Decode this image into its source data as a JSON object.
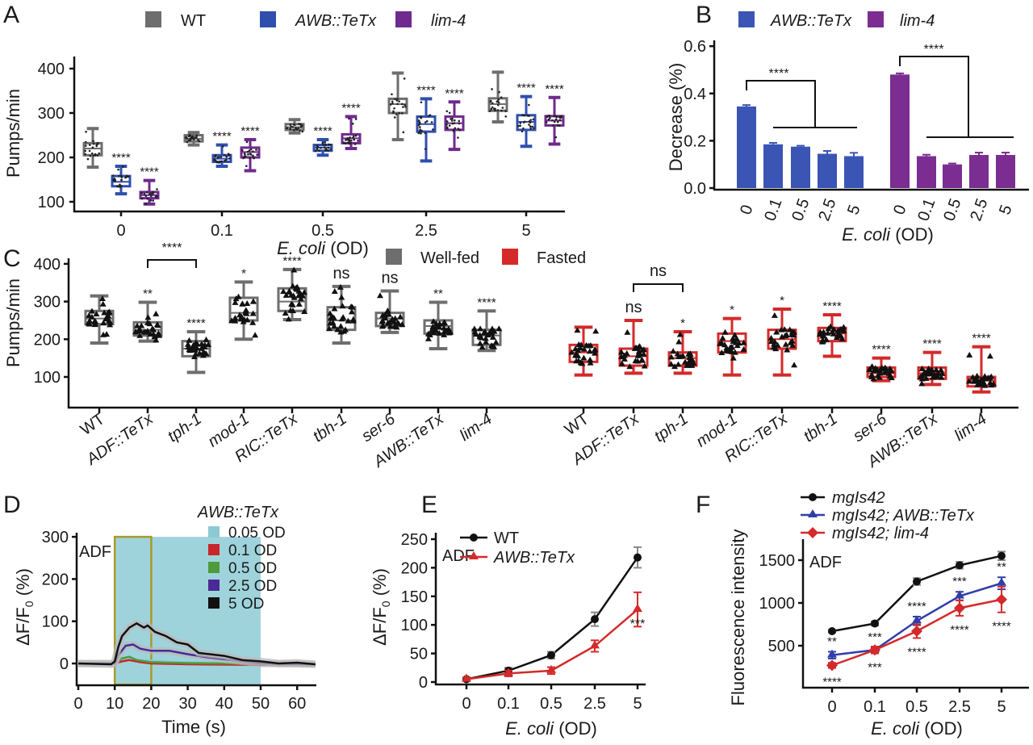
{
  "chart_data": [
    {
      "panel_label": "A",
      "type": "box",
      "categories": [
        "0",
        "0.1",
        "0.5",
        "2.5",
        "5"
      ],
      "xlabel_italic": "E. coli",
      "xlabel_rest": " (OD)",
      "ylabel": "Pumps/min",
      "ylim": [
        80,
        410
      ],
      "yticks": [
        100,
        200,
        300,
        400
      ],
      "series": [
        {
          "name": "WT",
          "color": "#6e6e6e",
          "significance": [
            "",
            "",
            "",
            "",
            ""
          ],
          "boxes": [
            [
              178,
              205,
              220,
              232,
              265
            ],
            [
              228,
              236,
              242,
              250,
              256
            ],
            [
              255,
              262,
              268,
              275,
              285
            ],
            [
              240,
              300,
              320,
              332,
              390
            ],
            [
              280,
              305,
              320,
              333,
              392
            ]
          ]
        },
        {
          "name": "AWB::TeTx",
          "color": "#2f4fae",
          "significance": [
            "****",
            "****",
            "****",
            "****",
            "****"
          ],
          "boxes": [
            [
              118,
              135,
              145,
              158,
              180
            ],
            [
              180,
              190,
              197,
              205,
              228
            ],
            [
              205,
              215,
              222,
              228,
              240
            ],
            [
              192,
              258,
              275,
              292,
              332
            ],
            [
              225,
              262,
              280,
              295,
              337
            ]
          ]
        },
        {
          "name": "lim-4",
          "color": "#6f2a8e",
          "significance": [
            "****",
            "****",
            "****",
            "****",
            "****"
          ],
          "boxes": [
            [
              95,
              108,
              115,
              122,
              148
            ],
            [
              170,
              200,
              212,
              222,
              240
            ],
            [
              220,
              232,
              243,
              252,
              292
            ],
            [
              218,
              262,
              277,
              292,
              325
            ],
            [
              230,
              272,
              283,
              293,
              335
            ]
          ]
        }
      ]
    },
    {
      "panel_label": "B",
      "type": "bar",
      "categories": [
        "0",
        "0.1",
        "0.5",
        "2.5",
        "5"
      ],
      "xlabel_italic": "E. coli",
      "xlabel_rest": " (OD)",
      "ylabel": "Decrease (%)",
      "ylim": [
        0,
        0.6
      ],
      "yticks": [
        "0.0",
        "0.2",
        "0.4",
        "0.6"
      ],
      "series": [
        {
          "name": "AWB::TeTx",
          "color": "#3a55b4",
          "values": [
            0.345,
            0.185,
            0.175,
            0.145,
            0.135
          ],
          "errors": [
            0.006,
            0.006,
            0.004,
            0.012,
            0.014
          ]
        },
        {
          "name": "lim-4",
          "color": "#7b2d91",
          "values": [
            0.48,
            0.135,
            0.1,
            0.14,
            0.14
          ],
          "errors": [
            0.005,
            0.006,
            0.004,
            0.01,
            0.01
          ]
        }
      ],
      "significance": [
        "****",
        "****"
      ]
    },
    {
      "panel_label": "C",
      "type": "box",
      "ylabel": "Pumps/min",
      "ylim": [
        20,
        410
      ],
      "yticks": [
        100,
        200,
        300,
        400
      ],
      "categories": [
        "WT",
        "ADF::TeTx",
        "tph-1",
        "mod-1",
        "RIC::TeTx",
        "tbh-1",
        "ser-6",
        "AWB::TeTx",
        "lim-4"
      ],
      "series": [
        {
          "name": "Well-fed",
          "color": "#6e6e6e",
          "sig_color": "#1a1a1a",
          "significance": [
            "",
            "**",
            "****",
            "*",
            "****",
            "ns",
            "ns",
            "**",
            "****"
          ],
          "bracket": {
            "label": "****"
          },
          "boxes": [
            [
              190,
              240,
              255,
              275,
              315
            ],
            [
              195,
              210,
              225,
              245,
              298
            ],
            [
              112,
              155,
              175,
              195,
              220
            ],
            [
              200,
              250,
              270,
              310,
              352
            ],
            [
              252,
              275,
              300,
              335,
              385
            ],
            [
              190,
              225,
              250,
              285,
              340
            ],
            [
              218,
              235,
              255,
              270,
              328
            ],
            [
              175,
              215,
              235,
              250,
              298
            ],
            [
              170,
              185,
              210,
              225,
              275
            ]
          ]
        },
        {
          "name": "Fasted",
          "color": "#d42a2a",
          "sig_color": "#b2242a",
          "significance": [
            "",
            "ns",
            "*",
            "*",
            "*",
            "****",
            "****",
            "****",
            "****"
          ],
          "bracket": {
            "label": "ns"
          },
          "boxes": [
            [
              105,
              140,
              165,
              185,
              232
            ],
            [
              110,
              130,
              155,
              175,
              250
            ],
            [
              110,
              130,
              150,
              165,
              220
            ],
            [
              105,
              165,
              195,
              215,
              255
            ],
            [
              105,
              175,
              200,
              225,
              280
            ],
            [
              155,
              195,
              215,
              230,
              265
            ],
            [
              90,
              100,
              110,
              125,
              150
            ],
            [
              80,
              95,
              110,
              125,
              165
            ],
            [
              60,
              75,
              90,
              100,
              180
            ]
          ]
        }
      ]
    },
    {
      "panel_label": "D",
      "type": "line",
      "annotation": "ADF",
      "legend_title": "AWB::TeTx",
      "xlabel": "Time (s)",
      "ylabel_main": "ΔF/F",
      "ylabel_sub": "0",
      "ylabel_unit": " (%)",
      "xlim": [
        0,
        65
      ],
      "ylim": [
        -50,
        300
      ],
      "xticks": [
        0,
        10,
        20,
        30,
        40,
        50,
        60
      ],
      "yticks": [
        0,
        100,
        200,
        300
      ],
      "stimulus_window_s": [
        10,
        50
      ],
      "highlight_window_s": [
        10,
        20
      ],
      "stimulus_color": "#9fd3dc",
      "highlight_color": "#a89a2a",
      "series": [
        {
          "name": "0.05 OD",
          "color": "#8ccad3",
          "points": [
            [
              0,
              0
            ],
            [
              10,
              0
            ],
            [
              12,
              8
            ],
            [
              14,
              12
            ],
            [
              18,
              8
            ],
            [
              25,
              4
            ],
            [
              35,
              2
            ],
            [
              50,
              0
            ],
            [
              65,
              -3
            ]
          ]
        },
        {
          "name": "0.1 OD",
          "color": "#c8262b",
          "points": [
            [
              0,
              0
            ],
            [
              10,
              0
            ],
            [
              12,
              5
            ],
            [
              14,
              8
            ],
            [
              17,
              3
            ],
            [
              20,
              0
            ],
            [
              30,
              -2
            ],
            [
              45,
              -3
            ],
            [
              55,
              -4
            ],
            [
              65,
              -5
            ]
          ]
        },
        {
          "name": "0.5 OD",
          "color": "#4f9a3a",
          "points": [
            [
              0,
              0
            ],
            [
              10,
              0
            ],
            [
              12,
              12
            ],
            [
              14,
              16
            ],
            [
              16,
              8
            ],
            [
              20,
              3
            ],
            [
              30,
              1
            ],
            [
              50,
              -1
            ],
            [
              65,
              -3
            ]
          ]
        },
        {
          "name": "2.5 OD",
          "color": "#4a2a95",
          "points": [
            [
              0,
              0
            ],
            [
              10,
              0
            ],
            [
              11,
              20
            ],
            [
              13,
              42
            ],
            [
              15,
              45
            ],
            [
              17,
              35
            ],
            [
              20,
              30
            ],
            [
              25,
              30
            ],
            [
              30,
              22
            ],
            [
              35,
              15
            ],
            [
              40,
              10
            ],
            [
              45,
              5
            ],
            [
              50,
              0
            ],
            [
              65,
              -2
            ]
          ]
        },
        {
          "name": "5 OD",
          "color": "#111111",
          "points": [
            [
              0,
              0
            ],
            [
              9,
              -2
            ],
            [
              10,
              5
            ],
            [
              11,
              40
            ],
            [
              12,
              65
            ],
            [
              14,
              85
            ],
            [
              16,
              95
            ],
            [
              18,
              85
            ],
            [
              19,
              90
            ],
            [
              21,
              75
            ],
            [
              24,
              65
            ],
            [
              27,
              50
            ],
            [
              30,
              45
            ],
            [
              33,
              25
            ],
            [
              36,
              22
            ],
            [
              40,
              18
            ],
            [
              45,
              8
            ],
            [
              50,
              5
            ],
            [
              55,
              0
            ],
            [
              60,
              2
            ],
            [
              65,
              -2
            ]
          ]
        }
      ]
    },
    {
      "panel_label": "E",
      "type": "line",
      "annotation": "ADF",
      "categories": [
        "0",
        "0.1",
        "0.5",
        "2.5",
        "5"
      ],
      "xlabel_italic": "E. coli",
      "xlabel_rest": " (OD)",
      "ylabel_main": "ΔF/F",
      "ylabel_sub": "0",
      "ylabel_unit": " (%)",
      "ylim": [
        0,
        250
      ],
      "yticks": [
        0,
        50,
        100,
        150,
        200,
        250
      ],
      "series": [
        {
          "name": "WT",
          "color": "#111111",
          "marker": "circle",
          "values": [
            5,
            20,
            47,
            110,
            218
          ],
          "errors": [
            3,
            5,
            6,
            12,
            18
          ]
        },
        {
          "name": "AWB::TeTx",
          "color": "#d42a2a",
          "marker": "triangle",
          "values": [
            5,
            15,
            20,
            63,
            127
          ],
          "errors": [
            3,
            5,
            6,
            10,
            30
          ]
        }
      ],
      "significance_label": "***"
    },
    {
      "panel_label": "F",
      "type": "line",
      "annotation": "ADF",
      "categories": [
        "0",
        "0.1",
        "0.5",
        "2.5",
        "5"
      ],
      "xlabel_italic": "E. coli",
      "xlabel_rest": " (OD)",
      "ylabel": "Fluorescence intensity",
      "ylim": [
        100,
        1700
      ],
      "yticks": [
        500,
        1000,
        1500
      ],
      "series": [
        {
          "name": "mgIs42",
          "color": "#111111",
          "marker": "circle",
          "values": [
            670,
            760,
            1250,
            1440,
            1550
          ],
          "errors": [
            15,
            25,
            40,
            40,
            50
          ],
          "significance": [
            "",
            "",
            "",
            "",
            ""
          ]
        },
        {
          "name": "mgIs42; AWB::TeTx",
          "color": "#2f3fa8",
          "marker": "triangle",
          "values": [
            390,
            450,
            790,
            1080,
            1230
          ],
          "errors": [
            40,
            30,
            50,
            50,
            70
          ],
          "significance": [
            "**",
            "***",
            "****",
            "***",
            "**"
          ]
        },
        {
          "name": "mgIs42; lim-4",
          "color": "#d42a2a",
          "marker": "diamond",
          "values": [
            270,
            450,
            670,
            940,
            1040
          ],
          "errors": [
            30,
            40,
            80,
            90,
            150
          ],
          "significance": [
            "****",
            "***",
            "****",
            "****",
            "****"
          ]
        }
      ]
    }
  ]
}
